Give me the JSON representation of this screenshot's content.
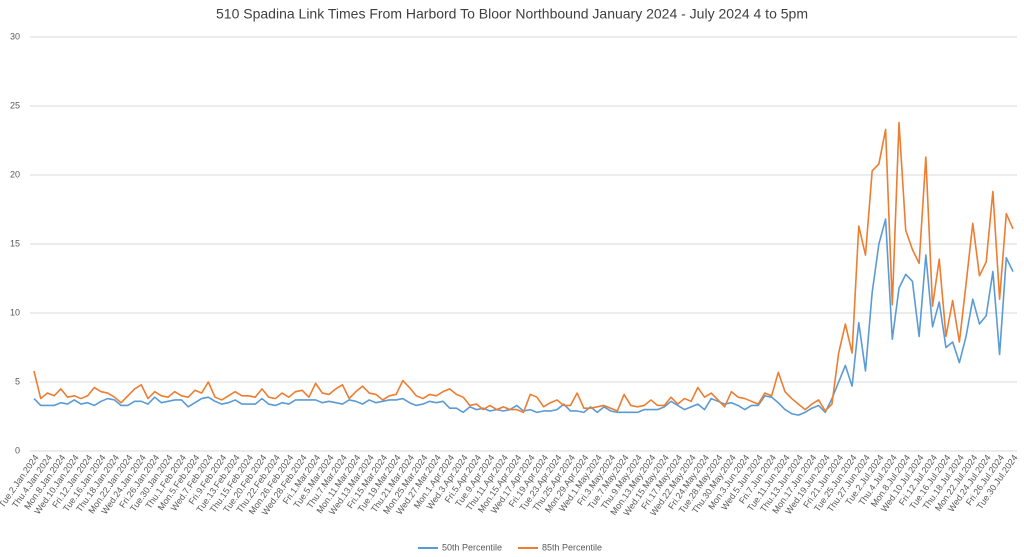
{
  "chart_data": {
    "type": "line",
    "title": "510 Spadina Link Times From Harbord To Bloor Northbound January 2024 - July 2024 4 to 5pm",
    "categories": [
      "Tue.2.Jan.2024",
      null,
      "Thu.4.Jan.2024",
      null,
      "Mon.8.Jan.2024",
      null,
      "Wed.10.Jan.2024",
      null,
      "Fri.12.Jan.2024",
      null,
      "Tue.16.Jan.2024",
      null,
      "Thu.18.Jan.2024",
      null,
      "Mon.22.Jan.2024",
      null,
      "Wed.24.Jan.2024",
      null,
      "Fri.26.Jan.2024",
      null,
      "Tue.30.Jan.2024",
      null,
      "Thu.1.Feb.2024",
      null,
      "Mon.5.Feb.2024",
      null,
      "Wed.7.Feb.2024",
      null,
      "Fri.9.Feb.2024",
      null,
      "Tue.13.Feb.2024",
      null,
      "Thu.15.Feb.2024",
      null,
      "Tue.20.Feb.2024",
      null,
      "Thu.22.Feb.2024",
      null,
      "Mon.26.Feb.2024",
      null,
      "Wed.28.Feb.2024",
      null,
      "Fri.1.Mar.2024",
      null,
      "Tue.5.Mar.2024",
      null,
      "Thu.7.Mar.2024",
      null,
      "Mon.11.Mar.2024",
      null,
      "Wed.13.Mar.2024",
      null,
      "Fri.15.Mar.2024",
      null,
      "Tue.19.Mar.2024",
      null,
      "Thu.21.Mar.2024",
      null,
      "Mon.25.Mar.2024",
      null,
      "Wed.27.Mar.2024",
      null,
      "Mon.1.Apr.2024",
      null,
      "Wed.3.Apr.2024",
      null,
      "Fri.5.Apr.2024",
      null,
      "Tue.9.Apr.2024",
      null,
      "Thu.11.Apr.2024",
      null,
      "Mon.15.Apr.2024",
      null,
      "Wed.17.Apr.2024",
      null,
      "Fri.19.Apr.2024",
      null,
      "Tue.23.Apr.2024",
      null,
      "Thu.25.Apr.2024",
      null,
      "Mon.29.Apr.2024",
      null,
      "Wed.1.May.2024",
      null,
      "Fri.3.May.2024",
      null,
      "Tue.7.May.2024",
      null,
      "Thu.9.May.2024",
      null,
      "Mon.13.May.2024",
      null,
      "Wed.15.May.2024",
      null,
      "Fri.17.May.2024",
      null,
      "Wed.22.May.2024",
      null,
      "Fri.24.May.2024",
      null,
      "Tue.28.May.2024",
      null,
      "Thu.30.May.2024",
      null,
      "Mon.3.Jun.2024",
      null,
      "Wed.5.Jun.2024",
      null,
      "Fri.7.Jun.2024",
      null,
      "Tue.11.Jun.2024",
      null,
      "Thu.13.Jun.2024",
      null,
      "Mon.17.Jun.2024",
      null,
      "Wed.19.Jun.2024",
      null,
      "Fri.21.Jun.2024",
      null,
      "Tue.25.Jun.2024",
      null,
      "Thu.27.Jun.2024",
      null,
      "Tue.2.Jul.2024",
      null,
      "Thu.4.Jul.2024",
      null,
      "Mon.8.Jul.2024",
      null,
      "Wed.10.Jul.2024",
      null,
      "Fri.12.Jul.2024",
      null,
      "Tue.16.Jul.2024",
      null,
      "Thu.18.Jul.2024",
      null,
      "Mon.22.Jul.2024",
      null,
      "Wed.24.Jul.2024",
      null,
      "Fri.26.Jul.2024",
      null,
      "Tue.30.Jul.2024"
    ],
    "series": [
      {
        "name": "50th Percentile",
        "color": "#5b9bd5",
        "values": [
          3.8,
          3.3,
          3.3,
          3.3,
          3.5,
          3.4,
          3.7,
          3.4,
          3.5,
          3.3,
          3.6,
          3.8,
          3.7,
          3.3,
          3.3,
          3.6,
          3.6,
          3.4,
          3.9,
          3.5,
          3.6,
          3.7,
          3.7,
          3.2,
          3.5,
          3.8,
          3.9,
          3.6,
          3.4,
          3.5,
          3.7,
          3.4,
          3.4,
          3.4,
          3.8,
          3.4,
          3.3,
          3.5,
          3.4,
          3.7,
          3.7,
          3.7,
          3.7,
          3.5,
          3.6,
          3.5,
          3.4,
          3.7,
          3.6,
          3.4,
          3.7,
          3.5,
          3.6,
          3.7,
          3.7,
          3.8,
          3.5,
          3.3,
          3.4,
          3.6,
          3.5,
          3.6,
          3.1,
          3.1,
          2.8,
          3.2,
          3.0,
          3.1,
          2.9,
          3.0,
          2.9,
          3.0,
          3.3,
          2.9,
          3.0,
          2.8,
          2.9,
          2.9,
          3.0,
          3.4,
          2.9,
          2.9,
          2.8,
          3.2,
          2.8,
          3.2,
          2.9,
          2.8,
          2.8,
          2.8,
          2.8,
          3.0,
          3.0,
          3.0,
          3.2,
          3.6,
          3.3,
          3.0,
          3.2,
          3.4,
          3.0,
          3.8,
          3.6,
          3.4,
          3.5,
          3.3,
          3.0,
          3.3,
          3.3,
          4.0,
          3.9,
          3.5,
          3.0,
          2.7,
          2.6,
          2.8,
          3.1,
          3.3,
          2.8,
          3.8,
          5.0,
          6.2,
          4.7,
          9.3,
          5.8,
          11.5,
          15.0,
          16.8,
          8.1,
          11.8,
          12.8,
          12.3,
          8.3,
          14.2,
          9.0,
          10.8,
          7.5,
          7.9,
          6.4,
          8.3,
          11.0,
          9.2,
          9.8,
          13.0,
          7.0,
          14.0,
          13.0
        ]
      },
      {
        "name": "85th Percentile",
        "color": "#ed7d31",
        "values": [
          5.8,
          3.8,
          4.2,
          4.0,
          4.5,
          3.9,
          4.0,
          3.8,
          4.0,
          4.6,
          4.3,
          4.2,
          3.9,
          3.5,
          4.0,
          4.5,
          4.8,
          3.8,
          4.3,
          4.0,
          3.9,
          4.3,
          4.0,
          3.9,
          4.4,
          4.2,
          5.0,
          3.9,
          3.7,
          4.0,
          4.3,
          4.0,
          4.0,
          3.9,
          4.5,
          3.9,
          3.8,
          4.2,
          3.9,
          4.3,
          4.4,
          3.9,
          4.9,
          4.2,
          4.1,
          4.5,
          4.8,
          3.8,
          4.3,
          4.7,
          4.2,
          4.1,
          3.7,
          4.0,
          4.1,
          5.1,
          4.6,
          4.0,
          3.8,
          4.1,
          4.0,
          4.3,
          4.5,
          4.1,
          3.9,
          3.3,
          3.4,
          3.0,
          3.3,
          3.0,
          3.2,
          3.0,
          3.0,
          2.8,
          4.1,
          3.9,
          3.2,
          3.5,
          3.7,
          3.3,
          3.3,
          4.2,
          3.1,
          3.1,
          3.2,
          3.3,
          3.1,
          2.9,
          4.1,
          3.3,
          3.2,
          3.3,
          3.7,
          3.3,
          3.3,
          3.9,
          3.4,
          3.8,
          3.6,
          4.6,
          3.9,
          4.2,
          3.7,
          3.2,
          4.3,
          3.9,
          3.8,
          3.6,
          3.4,
          4.2,
          4.0,
          5.7,
          4.3,
          3.8,
          3.4,
          3.0,
          3.4,
          3.7,
          2.9,
          3.4,
          7.1,
          9.2,
          7.1,
          16.3,
          14.2,
          20.3,
          20.8,
          23.3,
          10.6,
          23.8,
          16.0,
          14.6,
          13.6,
          21.3,
          10.5,
          13.9,
          8.3,
          10.9,
          7.9,
          12.1,
          16.5,
          12.7,
          13.7,
          18.8,
          11.0,
          17.2,
          16.1
        ]
      }
    ],
    "ylim": [
      0,
      30
    ],
    "yticks": [
      0,
      5,
      10,
      15,
      20,
      25,
      30
    ],
    "grid": true,
    "legend": "bottom"
  }
}
